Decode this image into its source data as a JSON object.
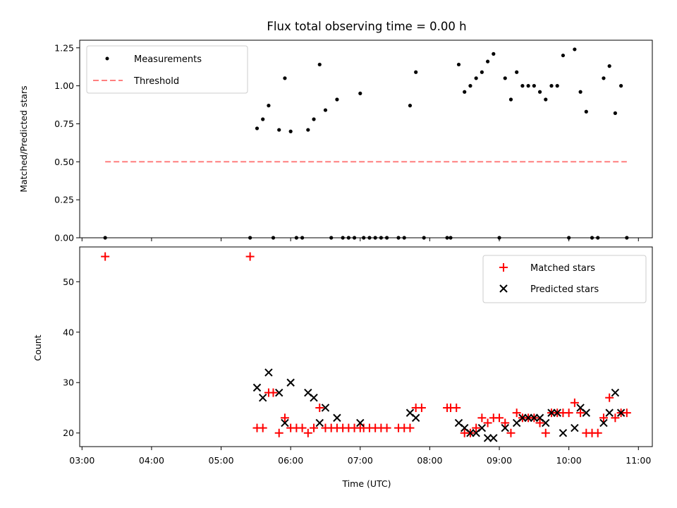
{
  "chart_data": [
    {
      "type": "scatter",
      "title": "Flux total observing time = 0.00 h",
      "ylabel": "Matched/Predicted stars",
      "xlabel": "",
      "xlim": [
        "02:58",
        "11:12"
      ],
      "ylim": [
        0,
        1.3
      ],
      "yticks": [
        "0.00",
        "0.25",
        "0.50",
        "0.75",
        "1.00",
        "1.25"
      ],
      "legend": {
        "position": "top-left",
        "entries": [
          "Measurements",
          "Threshold"
        ]
      },
      "series": [
        {
          "name": "Measurements",
          "color": "#000000",
          "marker": "dot",
          "points": [
            [
              "03:20",
              0
            ],
            [
              "05:25",
              0
            ],
            [
              "05:31",
              0.72
            ],
            [
              "05:36",
              0.78
            ],
            [
              "05:41",
              0.87
            ],
            [
              "05:45",
              0
            ],
            [
              "05:50",
              0.71
            ],
            [
              "05:55",
              1.05
            ],
            [
              "06:00",
              0.7
            ],
            [
              "06:05",
              0
            ],
            [
              "06:10",
              0
            ],
            [
              "06:15",
              0.71
            ],
            [
              "06:20",
              0.78
            ],
            [
              "06:25",
              1.14
            ],
            [
              "06:30",
              0.84
            ],
            [
              "06:35",
              0
            ],
            [
              "06:40",
              0.91
            ],
            [
              "06:45",
              0
            ],
            [
              "06:50",
              0
            ],
            [
              "06:55",
              0
            ],
            [
              "07:00",
              0.95
            ],
            [
              "07:03",
              0
            ],
            [
              "07:08",
              0
            ],
            [
              "07:13",
              0
            ],
            [
              "07:18",
              0
            ],
            [
              "07:23",
              0
            ],
            [
              "07:33",
              0
            ],
            [
              "07:38",
              0
            ],
            [
              "07:43",
              0.87
            ],
            [
              "07:48",
              1.09
            ],
            [
              "07:55",
              0
            ],
            [
              "08:15",
              0
            ],
            [
              "08:18",
              0
            ],
            [
              "08:25",
              1.14
            ],
            [
              "08:30",
              0.96
            ],
            [
              "08:35",
              1.0
            ],
            [
              "08:40",
              1.05
            ],
            [
              "08:45",
              1.09
            ],
            [
              "08:50",
              1.16
            ],
            [
              "08:55",
              1.21
            ],
            [
              "09:00",
              0
            ],
            [
              "09:05",
              1.05
            ],
            [
              "09:10",
              0.91
            ],
            [
              "09:15",
              1.09
            ],
            [
              "09:20",
              1.0
            ],
            [
              "09:25",
              1.0
            ],
            [
              "09:30",
              1.0
            ],
            [
              "09:35",
              0.96
            ],
            [
              "09:40",
              0.91
            ],
            [
              "09:45",
              1.0
            ],
            [
              "09:50",
              1.0
            ],
            [
              "09:55",
              1.2
            ],
            [
              "10:00",
              0
            ],
            [
              "10:05",
              1.24
            ],
            [
              "10:10",
              0.96
            ],
            [
              "10:15",
              0.83
            ],
            [
              "10:20",
              0
            ],
            [
              "10:25",
              0
            ],
            [
              "10:30",
              1.05
            ],
            [
              "10:35",
              1.13
            ],
            [
              "10:40",
              0.82
            ],
            [
              "10:45",
              1.0
            ],
            [
              "10:50",
              0
            ]
          ]
        },
        {
          "name": "Threshold",
          "color": "#ff7f7f",
          "style": "dashed",
          "points": [
            [
              "03:20",
              0.5
            ],
            [
              "10:50",
              0.5
            ]
          ]
        }
      ]
    },
    {
      "type": "scatter",
      "title": "",
      "xlabel": "Time (UTC)",
      "ylabel": "Count",
      "xlim": [
        "02:58",
        "11:12"
      ],
      "ylim": [
        17.3,
        56.9
      ],
      "xticks": [
        "03:00",
        "04:00",
        "05:00",
        "06:00",
        "07:00",
        "08:00",
        "09:00",
        "10:00",
        "11:00"
      ],
      "yticks": [
        "20",
        "30",
        "40",
        "50"
      ],
      "legend": {
        "position": "top-right",
        "entries": [
          "Matched stars",
          "Predicted stars"
        ]
      },
      "series": [
        {
          "name": "Matched stars",
          "color": "#ff0000",
          "marker": "plus",
          "points": [
            [
              "03:20",
              55
            ],
            [
              "05:25",
              55
            ],
            [
              "05:31",
              21
            ],
            [
              "05:36",
              21
            ],
            [
              "05:41",
              28
            ],
            [
              "05:45",
              28
            ],
            [
              "05:50",
              20
            ],
            [
              "05:55",
              23
            ],
            [
              "06:00",
              21
            ],
            [
              "06:05",
              21
            ],
            [
              "06:10",
              21
            ],
            [
              "06:15",
              20
            ],
            [
              "06:20",
              21
            ],
            [
              "06:25",
              25
            ],
            [
              "06:30",
              21
            ],
            [
              "06:35",
              21
            ],
            [
              "06:40",
              21
            ],
            [
              "06:45",
              21
            ],
            [
              "06:50",
              21
            ],
            [
              "06:55",
              21
            ],
            [
              "07:00",
              21
            ],
            [
              "07:03",
              21
            ],
            [
              "07:08",
              21
            ],
            [
              "07:13",
              21
            ],
            [
              "07:18",
              21
            ],
            [
              "07:23",
              21
            ],
            [
              "07:33",
              21
            ],
            [
              "07:38",
              21
            ],
            [
              "07:43",
              21
            ],
            [
              "07:48",
              25
            ],
            [
              "07:53",
              25
            ],
            [
              "08:15",
              25
            ],
            [
              "08:18",
              25
            ],
            [
              "08:23",
              25
            ],
            [
              "08:30",
              20
            ],
            [
              "08:35",
              20
            ],
            [
              "08:40",
              21
            ],
            [
              "08:45",
              23
            ],
            [
              "08:50",
              22
            ],
            [
              "08:55",
              23
            ],
            [
              "09:00",
              23
            ],
            [
              "09:05",
              22
            ],
            [
              "09:10",
              20
            ],
            [
              "09:15",
              24
            ],
            [
              "09:20",
              23
            ],
            [
              "09:25",
              23
            ],
            [
              "09:30",
              23
            ],
            [
              "09:35",
              22
            ],
            [
              "09:40",
              20
            ],
            [
              "09:45",
              24
            ],
            [
              "09:50",
              24
            ],
            [
              "09:55",
              24
            ],
            [
              "10:00",
              24
            ],
            [
              "10:05",
              26
            ],
            [
              "10:10",
              24
            ],
            [
              "10:15",
              20
            ],
            [
              "10:20",
              20
            ],
            [
              "10:25",
              20
            ],
            [
              "10:30",
              23
            ],
            [
              "10:35",
              27
            ],
            [
              "10:40",
              23
            ],
            [
              "10:45",
              24
            ],
            [
              "10:50",
              24
            ]
          ]
        },
        {
          "name": "Predicted stars",
          "color": "#000000",
          "marker": "x",
          "points": [
            [
              "05:31",
              29
            ],
            [
              "05:36",
              27
            ],
            [
              "05:41",
              32
            ],
            [
              "05:50",
              28
            ],
            [
              "05:55",
              22
            ],
            [
              "06:00",
              30
            ],
            [
              "06:15",
              28
            ],
            [
              "06:20",
              27
            ],
            [
              "06:25",
              22
            ],
            [
              "06:30",
              25
            ],
            [
              "06:40",
              23
            ],
            [
              "07:00",
              22
            ],
            [
              "07:43",
              24
            ],
            [
              "07:48",
              23
            ],
            [
              "08:25",
              22
            ],
            [
              "08:30",
              21
            ],
            [
              "08:35",
              20
            ],
            [
              "08:40",
              20
            ],
            [
              "08:45",
              21
            ],
            [
              "08:50",
              19
            ],
            [
              "08:55",
              19
            ],
            [
              "09:05",
              21
            ],
            [
              "09:15",
              22
            ],
            [
              "09:20",
              23
            ],
            [
              "09:25",
              23
            ],
            [
              "09:30",
              23
            ],
            [
              "09:35",
              23
            ],
            [
              "09:40",
              22
            ],
            [
              "09:45",
              24
            ],
            [
              "09:50",
              24
            ],
            [
              "09:55",
              20
            ],
            [
              "10:05",
              21
            ],
            [
              "10:10",
              25
            ],
            [
              "10:15",
              24
            ],
            [
              "10:30",
              22
            ],
            [
              "10:35",
              24
            ],
            [
              "10:40",
              28
            ],
            [
              "10:45",
              24
            ]
          ]
        }
      ]
    }
  ]
}
